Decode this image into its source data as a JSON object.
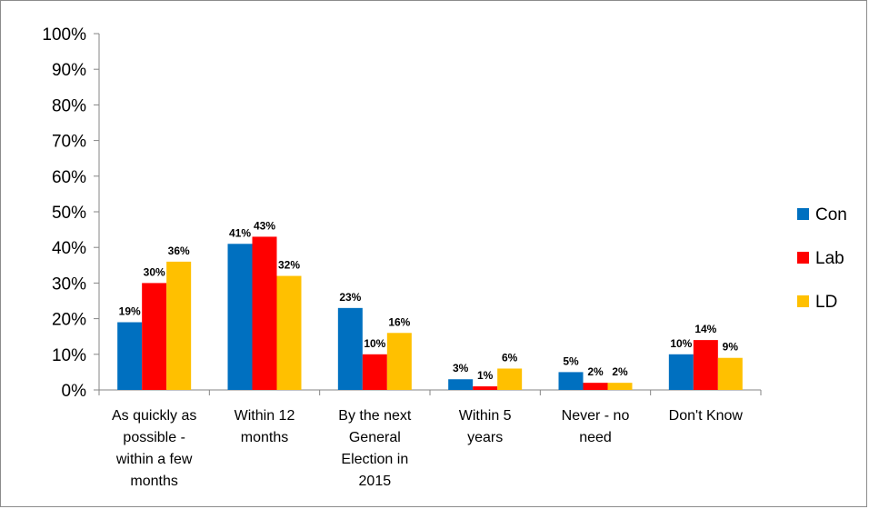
{
  "chart_data": {
    "type": "bar",
    "categories": [
      "As quickly as possible - within a few months",
      "Within 12 months",
      "By the next General Election in 2015",
      "Within 5 years",
      "Never - no need",
      "Don't Know"
    ],
    "category_lines": [
      [
        "As quickly as",
        "possible -",
        "within a few",
        "months"
      ],
      [
        "Within 12",
        "months"
      ],
      [
        "By the next",
        "General",
        "Election in",
        "2015"
      ],
      [
        "Within 5",
        "years"
      ],
      [
        "Never - no",
        "need"
      ],
      [
        "Don't Know"
      ]
    ],
    "series": [
      {
        "name": "Con",
        "color": "#0070c0",
        "values": [
          19,
          41,
          23,
          3,
          5,
          10
        ],
        "labels": [
          "19%",
          "41%",
          "23%",
          "3%",
          "5%",
          "10%"
        ]
      },
      {
        "name": "Lab",
        "color": "#ff0000",
        "values": [
          30,
          43,
          10,
          1,
          2,
          14
        ],
        "labels": [
          "30%",
          "43%",
          "10%",
          "1%",
          "2%",
          "14%"
        ]
      },
      {
        "name": "LD",
        "color": "#ffc000",
        "values": [
          36,
          32,
          16,
          6,
          2,
          9
        ],
        "labels": [
          "36%",
          "32%",
          "16%",
          "6%",
          "2%",
          "9%"
        ]
      }
    ],
    "ylim": [
      0,
      100
    ],
    "yticks": [
      "0%",
      "10%",
      "20%",
      "30%",
      "40%",
      "50%",
      "60%",
      "70%",
      "80%",
      "90%",
      "100%"
    ],
    "title": "",
    "xlabel": "",
    "ylabel": "",
    "grid": false,
    "legend_position": "right"
  }
}
